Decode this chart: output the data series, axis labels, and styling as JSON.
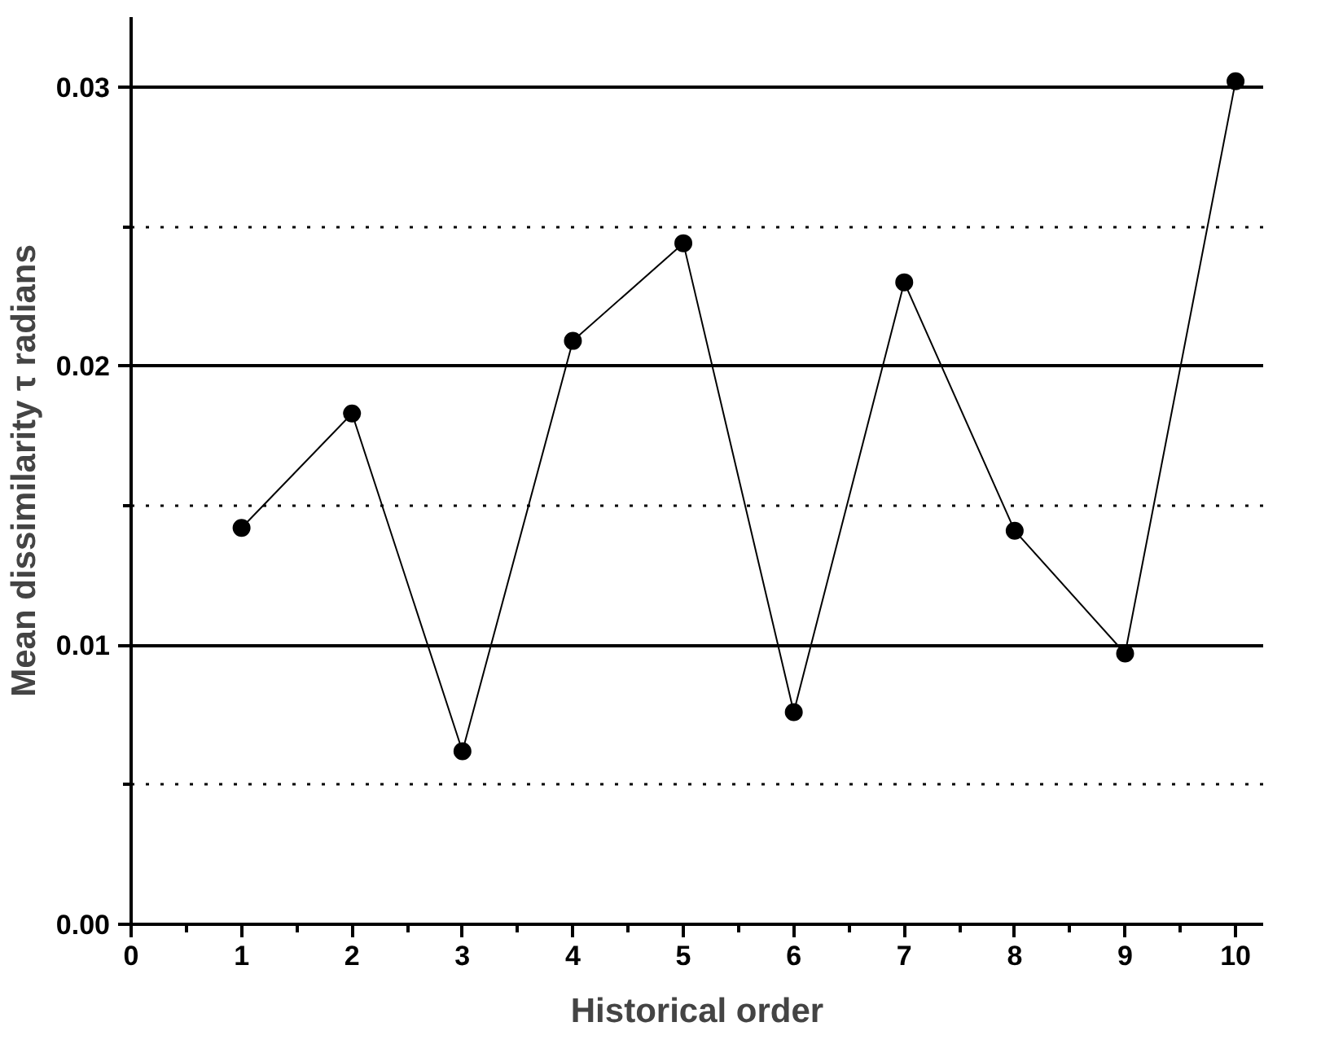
{
  "chart_data": {
    "type": "line",
    "xlabel": "Historical order",
    "ylabel": "Mean dissimilarity τ radians",
    "x": [
      1,
      2,
      3,
      4,
      5,
      6,
      7,
      8,
      9,
      10
    ],
    "series": [
      {
        "color": "#000000",
        "values": [
          0.0142,
          0.0183,
          0.0062,
          0.0209,
          0.0244,
          0.0076,
          0.023,
          0.0141,
          0.0097,
          0.0302
        ]
      }
    ],
    "xlim": [
      0,
      10.25
    ],
    "ylim": [
      0,
      0.0325
    ],
    "xticks": [
      0,
      {
        "value": 0.5,
        "label": null
      },
      1,
      {
        "value": 1.5,
        "label": null
      },
      2,
      {
        "value": 2.5,
        "label": null
      },
      3,
      {
        "value": 3.5,
        "label": null
      },
      4,
      {
        "value": 4.5,
        "label": null
      },
      5,
      {
        "value": 5.5,
        "label": null
      },
      6,
      {
        "value": 6.5,
        "label": null
      },
      7,
      {
        "value": 7.5,
        "label": null
      },
      8,
      {
        "value": 8.5,
        "label": null
      },
      9,
      {
        "value": 9.5,
        "label": null
      },
      10
    ],
    "yticks": [
      {
        "value": 0,
        "label": "0.00"
      },
      {
        "value": 0.005,
        "label": null
      },
      {
        "value": 0.01,
        "label": "0.01"
      },
      {
        "value": 0.015,
        "label": null
      },
      {
        "value": 0.02,
        "label": "0.02"
      },
      {
        "value": 0.025,
        "label": null
      },
      {
        "value": 0.03,
        "label": "0.03"
      }
    ],
    "grid": "y",
    "marker": "circle",
    "line_style": "solid"
  }
}
